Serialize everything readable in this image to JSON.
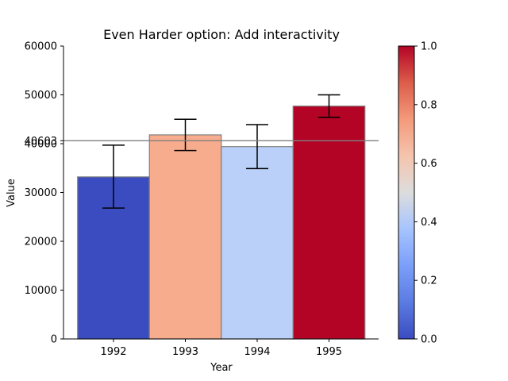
{
  "chart_data": {
    "type": "bar",
    "title": "Even Harder option: Add interactivity",
    "xlabel": "Year",
    "ylabel": "Value",
    "categories": [
      "1992",
      "1993",
      "1994",
      "1995"
    ],
    "values": [
      33200,
      41800,
      39400,
      47700
    ],
    "errors_low": [
      26800,
      38600,
      34900,
      45400
    ],
    "errors_high": [
      39700,
      45000,
      43900,
      50000
    ],
    "bar_colors": [
      "#3b4cc0",
      "#f7ac8e",
      "#bad0f8",
      "#b40426"
    ],
    "ylim": [
      0,
      60000
    ],
    "yticks": [
      "0",
      "10000",
      "20000",
      "30000",
      "40000",
      "50000",
      "60000"
    ],
    "threshold": {
      "value": 40603,
      "label": "40603",
      "color": "#808080"
    },
    "colorbar": {
      "range": [
        0.0,
        1.0
      ],
      "colormap": "coolwarm",
      "ticks": [
        "0.0",
        "0.2",
        "0.4",
        "0.6",
        "0.8",
        "1.0"
      ]
    },
    "grid": false,
    "legend": "none"
  }
}
